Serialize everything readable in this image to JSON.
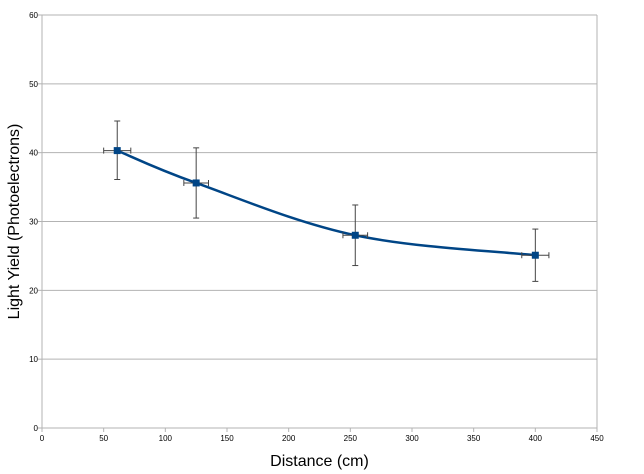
{
  "chart_data": {
    "type": "scatter",
    "title": "",
    "xlabel": "Distance  (cm)",
    "ylabel": "Light Yield (Photoelectrons)",
    "xlim": [
      0,
      450
    ],
    "ylim": [
      0,
      60
    ],
    "x_ticks": [
      "0",
      "50",
      "100",
      "150",
      "200",
      "250",
      "300",
      "350",
      "400",
      "450"
    ],
    "y_ticks": [
      "0",
      "10",
      "20",
      "30",
      "40",
      "50",
      "60"
    ],
    "grid": "horizontal",
    "legend": "none",
    "series": [
      {
        "color": "#004586",
        "line": "smoothed",
        "marker": "square",
        "points": [
          {
            "x": 61,
            "y": 40.3,
            "xerr": 11,
            "yerr_low": 4.2,
            "yerr_high": 4.3
          },
          {
            "x": 125,
            "y": 35.6,
            "xerr": 10,
            "yerr_low": 5.1,
            "yerr_high": 5.1
          },
          {
            "x": 254,
            "y": 28.0,
            "xerr": 10,
            "yerr_low": 4.4,
            "yerr_high": 4.4
          },
          {
            "x": 400,
            "y": 25.1,
            "xerr": 11,
            "yerr_low": 3.8,
            "yerr_high": 3.8
          }
        ]
      }
    ]
  }
}
